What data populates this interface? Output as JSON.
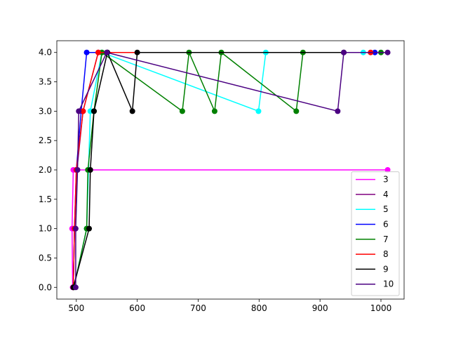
{
  "chart_data": {
    "type": "line",
    "xlim": [
      468,
      1038
    ],
    "ylim": [
      -0.2,
      4.2
    ],
    "xticks": [
      500,
      600,
      700,
      800,
      900,
      1000
    ],
    "yticks": [
      {
        "value": 0,
        "label": "0.0"
      },
      {
        "value": 0.5,
        "label": "0.5"
      },
      {
        "value": 1,
        "label": "1.0"
      },
      {
        "value": 1.5,
        "label": "1.5"
      },
      {
        "value": 2,
        "label": "2.0"
      },
      {
        "value": 2.5,
        "label": "2.5"
      },
      {
        "value": 3,
        "label": "3.0"
      },
      {
        "value": 3.5,
        "label": "3.5"
      },
      {
        "value": 4,
        "label": "4.0"
      }
    ],
    "legend": "lower right",
    "series": [
      {
        "name": "3",
        "color": "#ff00ff",
        "x": [
          494,
          493,
          495,
          1011
        ],
        "values": [
          0,
          1,
          2,
          2
        ]
      },
      {
        "name": "4",
        "color": "#800080",
        "x": [
          495,
          497,
          501,
          511,
          536,
          551
        ],
        "values": [
          0,
          1,
          2,
          3,
          4,
          4
        ]
      },
      {
        "name": "5",
        "color": "#00ffff",
        "x": [
          496,
          517,
          520,
          523,
          542,
          799,
          811,
          971
        ],
        "values": [
          0,
          1,
          2,
          3,
          4,
          3,
          4,
          4
        ]
      },
      {
        "name": "6",
        "color": "#0000ff",
        "x": [
          495,
          497,
          500,
          508,
          517,
          990
        ],
        "values": [
          0,
          1,
          2,
          3,
          4,
          4
        ]
      },
      {
        "name": "7",
        "color": "#008000",
        "x": [
          496,
          517,
          519,
          529,
          542,
          674,
          685,
          727,
          738,
          861,
          872,
          1000
        ],
        "values": [
          0,
          1,
          2,
          3,
          4,
          3,
          4,
          3,
          4,
          3,
          4,
          4
        ]
      },
      {
        "name": "8",
        "color": "#ff0000",
        "x": [
          495,
          497,
          500,
          511,
          536,
          983
        ],
        "values": [
          0,
          1,
          2,
          3,
          4,
          4
        ]
      },
      {
        "name": "9",
        "color": "#000000",
        "x": [
          495,
          521,
          523,
          529,
          551,
          592,
          600,
          939
        ],
        "values": [
          0,
          1,
          2,
          3,
          4,
          3,
          4,
          4
        ]
      },
      {
        "name": "10",
        "color": "#4b0082",
        "x": [
          499,
          499,
          502,
          504,
          550,
          929,
          939,
          1011
        ],
        "values": [
          0,
          1,
          2,
          3,
          4,
          3,
          4,
          4
        ]
      }
    ]
  }
}
